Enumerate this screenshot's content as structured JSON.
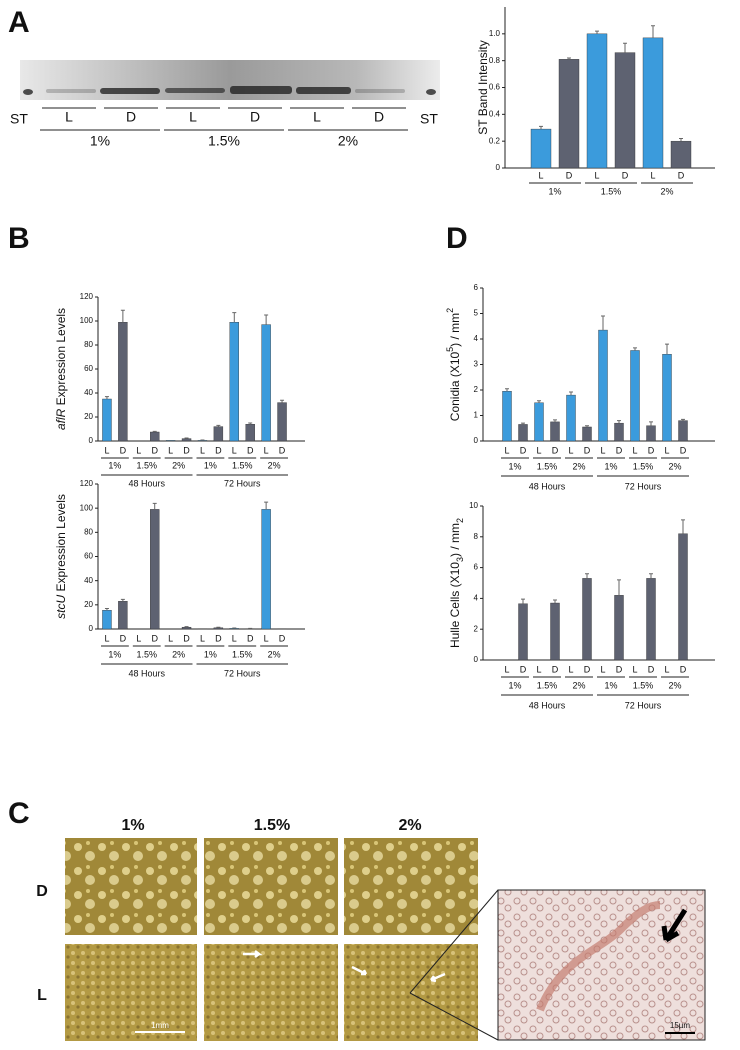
{
  "panel_labels": [
    "A",
    "B",
    "C",
    "D"
  ],
  "gel": {
    "standard": "ST",
    "lanes": [
      "L",
      "D",
      "L",
      "D",
      "L",
      "D"
    ],
    "groups": [
      "1%",
      "1.5%",
      "2%"
    ]
  },
  "chart_data": [
    {
      "type": "bar",
      "ylabel": [
        "ST Band Intensity"
      ],
      "ylabel_style": [
        "normal"
      ],
      "categories": [
        "L",
        "D",
        "L",
        "D",
        "L",
        "D"
      ],
      "values": [
        0.29,
        0.81,
        1.0,
        0.86,
        0.97,
        0.2
      ],
      "errors": [
        0.02,
        0.01,
        0.02,
        0.07,
        0.09,
        0.02
      ],
      "groups": [
        "1%",
        "1.5%",
        "2%"
      ],
      "supergroups": [],
      "bar_colors": [
        "#3b9bdc",
        "#5e6271"
      ],
      "ylim": [
        0,
        1.2
      ],
      "yticks": [
        0,
        0.2,
        0.4,
        0.6,
        0.8,
        {
          "value": 1,
          "label": "1.0"
        }
      ]
    },
    {
      "type": "bar",
      "ylabel": [
        "aflR",
        " Expression Levels"
      ],
      "ylabel_style": [
        "italic",
        "normal"
      ],
      "categories": [
        "L",
        "D",
        "L",
        "D",
        "L",
        "D",
        "L",
        "D",
        "L",
        "D",
        "L",
        "D"
      ],
      "values": [
        35,
        99,
        0,
        7.5,
        0.5,
        2,
        0.5,
        12,
        99,
        14,
        97,
        32
      ],
      "errors": [
        2,
        10,
        null,
        0.5,
        null,
        0.5,
        0.3,
        1,
        8,
        1,
        8,
        2
      ],
      "groups": [
        "1%",
        "1.5%",
        "2%",
        "1%",
        "1.5%",
        "2%"
      ],
      "supergroups": [
        "48 Hours",
        "72 Hours"
      ],
      "bar_colors": [
        "#3b9bdc",
        "#5e6271"
      ],
      "ylim": [
        0,
        120
      ],
      "yticks": [
        0,
        20,
        40,
        60,
        80,
        100,
        120
      ]
    },
    {
      "type": "bar",
      "ylabel": [
        "stcU",
        " Expression Levels"
      ],
      "ylabel_style": [
        "italic",
        "normal"
      ],
      "categories": [
        "L",
        "D",
        "L",
        "D",
        "L",
        "D",
        "L",
        "D",
        "L",
        "D",
        "L",
        "D"
      ],
      "values": [
        15.5,
        23,
        0,
        99,
        0,
        1.5,
        0.3,
        1,
        0.5,
        0.3,
        99,
        0.3
      ],
      "errors": [
        1.5,
        1.5,
        null,
        5,
        null,
        0.5,
        null,
        0.5,
        0.3,
        0.2,
        6,
        null
      ],
      "groups": [
        "1%",
        "1.5%",
        "2%",
        "1%",
        "1.5%",
        "2%"
      ],
      "supergroups": [
        "48 Hours",
        "72 Hours"
      ],
      "bar_colors": [
        "#3b9bdc",
        "#5e6271"
      ],
      "ylim": [
        0,
        120
      ],
      "yticks": [
        0,
        20,
        40,
        60,
        80,
        100,
        120
      ]
    },
    {
      "type": "bar",
      "ylabel": [
        "Conidia (X10",
        "5",
        ") / mm",
        "2"
      ],
      "ylabel_style": [
        "normal",
        "super",
        "normal",
        "super"
      ],
      "categories": [
        "L",
        "D",
        "L",
        "D",
        "L",
        "D",
        "L",
        "D",
        "L",
        "D",
        "L",
        "D"
      ],
      "values": [
        1.95,
        0.65,
        1.5,
        0.75,
        1.8,
        0.55,
        4.35,
        0.7,
        3.55,
        0.6,
        3.4,
        0.8
      ],
      "errors": [
        0.1,
        0.05,
        0.08,
        0.08,
        0.12,
        0.05,
        0.55,
        0.1,
        0.1,
        0.15,
        0.4,
        0.05
      ],
      "groups": [
        "1%",
        "1.5%",
        "2%",
        "1%",
        "1.5%",
        "2%"
      ],
      "supergroups": [
        "48 Hours",
        "72 Hours"
      ],
      "bar_colors": [
        "#3b9bdc",
        "#5e6271"
      ],
      "ylim": [
        0,
        6
      ],
      "yticks": [
        0,
        1,
        2,
        3,
        4,
        5,
        6
      ]
    },
    {
      "type": "bar",
      "ylabel": [
        "Hulle Cells (X10",
        "3",
        ") / mm",
        "2"
      ],
      "ylabel_style": [
        "normal",
        "sub",
        "normal",
        "sub"
      ],
      "categories": [
        "L",
        "D",
        "L",
        "D",
        "L",
        "D",
        "L",
        "D",
        "L",
        "D",
        "L",
        "D"
      ],
      "values": [
        0,
        3.65,
        0,
        3.7,
        0,
        5.3,
        0,
        4.2,
        0,
        5.3,
        0,
        8.2
      ],
      "errors": [
        null,
        0.3,
        null,
        0.2,
        null,
        0.3,
        null,
        1.0,
        null,
        0.3,
        null,
        0.9
      ],
      "groups": [
        "1%",
        "1.5%",
        "2%",
        "1%",
        "1.5%",
        "2%"
      ],
      "supergroups": [
        "48 Hours",
        "72 Hours"
      ],
      "bar_colors": [
        "#3b9bdc",
        "#5e6271"
      ],
      "ylim": [
        0,
        10
      ],
      "yticks": [
        0,
        2,
        4,
        6,
        8,
        10
      ]
    }
  ],
  "micrographs": {
    "columns": [
      "1%",
      "1.5%",
      "2%"
    ],
    "rows": [
      "D",
      "L"
    ],
    "scale_bars": [
      "1mm",
      "15µm"
    ]
  }
}
